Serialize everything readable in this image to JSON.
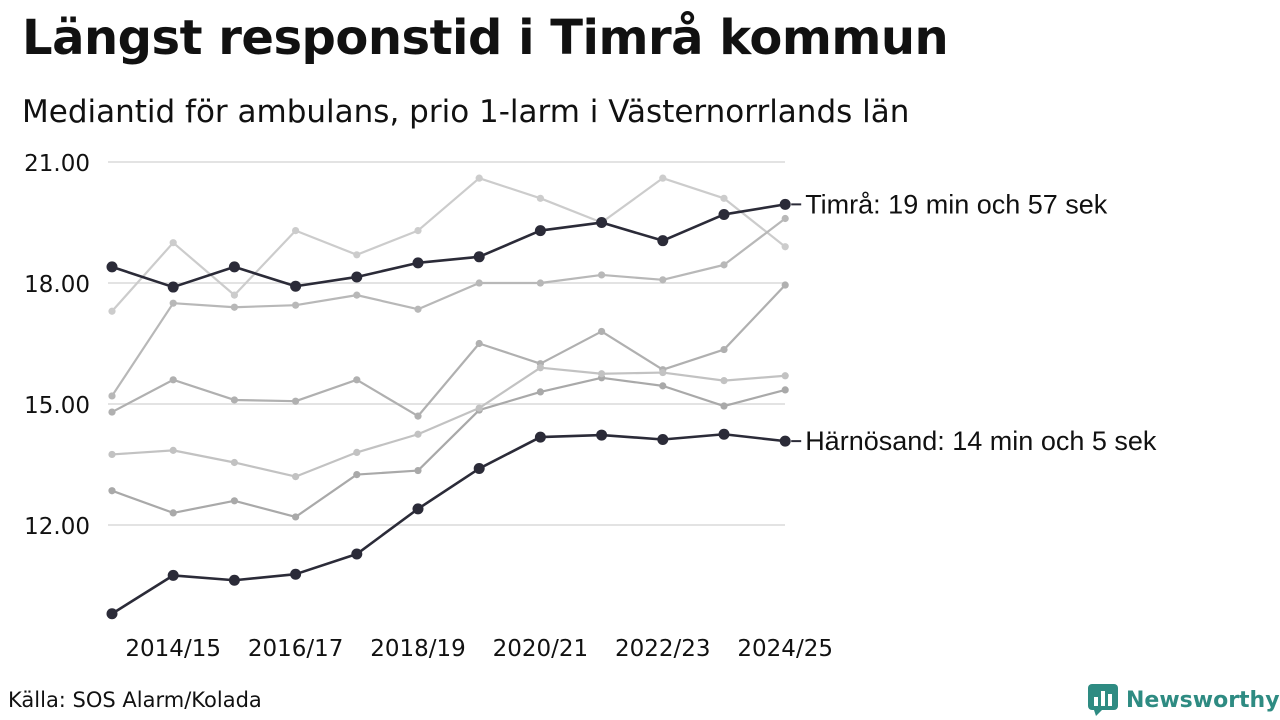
{
  "title": "Längst responstid i Timrå kommun",
  "subtitle": "Mediantid för ambulans, prio 1-larm i Västernorrlands län",
  "source": "Källa: SOS Alarm/Kolada",
  "brand": {
    "name": "Newsworthy",
    "icon": "newsworthy-logo-icon",
    "color": "#2e8b82"
  },
  "colors": {
    "highlight": "#2b2b38",
    "grid": "#e3e3e3",
    "others": [
      "#cccccc",
      "#b8b8b8",
      "#b0b0b0",
      "#a9a9a9",
      "#c2c2c2",
      "#bdbdbd"
    ]
  },
  "chart_data": {
    "type": "line",
    "x": [
      "2013/14",
      "2014/15",
      "2015/16",
      "2016/17",
      "2017/18",
      "2018/19",
      "2019/20",
      "2020/21",
      "2021/22",
      "2022/23",
      "2023/24",
      "2024/25"
    ],
    "tick_labels": [
      "2014/15",
      "2016/17",
      "2018/19",
      "2020/21",
      "2022/23",
      "2024/25"
    ],
    "y_ticks": [
      "12.00",
      "15.00",
      "18.00",
      "21.00"
    ],
    "ylim": [
      9.6,
      21.0
    ],
    "grid": true,
    "series": [
      {
        "values": [
          17.3,
          19.0,
          17.7,
          19.3,
          18.7,
          19.3,
          20.6,
          20.1,
          19.5,
          20.6,
          20.1,
          18.9
        ]
      },
      {
        "values": [
          15.2,
          17.5,
          17.4,
          17.45,
          17.7,
          17.35,
          18.0,
          18.0,
          18.2,
          18.08,
          18.45,
          19.6
        ]
      },
      {
        "values": [
          14.8,
          15.6,
          15.1,
          15.07,
          15.6,
          14.7,
          16.5,
          16.0,
          16.8,
          15.85,
          16.35,
          17.95
        ]
      },
      {
        "values": [
          12.85,
          12.3,
          12.6,
          12.2,
          13.25,
          13.35,
          14.85,
          15.3,
          15.65,
          15.45,
          14.95,
          15.35
        ]
      },
      {
        "values": [
          13.75,
          13.85,
          13.55,
          13.2,
          13.8,
          14.25,
          14.9,
          15.9,
          15.75,
          15.78,
          15.58,
          15.7
        ]
      },
      {
        "name": "Timrå: 19 min och 57 sek",
        "highlight": true,
        "values": [
          18.4,
          17.9,
          18.4,
          17.92,
          18.15,
          18.5,
          18.65,
          19.3,
          19.5,
          19.05,
          19.7,
          19.95
        ]
      },
      {
        "name": "Härnösand: 14 min och 5 sek",
        "highlight": true,
        "values": [
          9.8,
          10.75,
          10.63,
          10.78,
          11.28,
          12.4,
          13.4,
          14.18,
          14.23,
          14.12,
          14.25,
          14.08
        ]
      }
    ]
  }
}
